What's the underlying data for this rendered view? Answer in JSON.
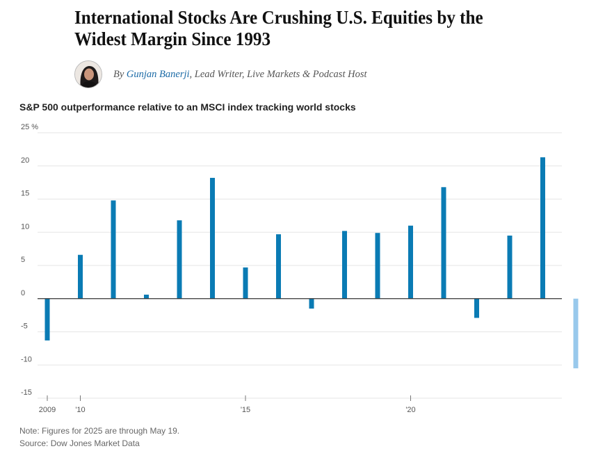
{
  "article": {
    "headline": "International Stocks Are Crushing U.S. Equities by the Widest Margin Since 1993",
    "byline_prefix": "By ",
    "author": "Gunjan Banerji",
    "author_role": ", Lead Writer, Live Markets & Podcast Host",
    "avatar_icon": "author-photo"
  },
  "chart_data": {
    "type": "bar",
    "title": "S&P 500 outperformance relative to an MSCI index tracking world stocks",
    "x": [
      2009,
      2010,
      2011,
      2012,
      2013,
      2014,
      2015,
      2016,
      2017,
      2018,
      2019,
      2020,
      2021,
      2022,
      2023,
      2024,
      2025
    ],
    "values": [
      -6.3,
      6.6,
      14.8,
      0.6,
      11.8,
      18.2,
      4.7,
      9.7,
      -1.5,
      10.2,
      9.9,
      11.0,
      16.8,
      -2.9,
      9.5,
      21.3,
      -10.5
    ],
    "highlight": [
      false,
      false,
      false,
      false,
      false,
      false,
      false,
      false,
      false,
      false,
      false,
      false,
      false,
      false,
      false,
      false,
      true
    ],
    "colors": {
      "bar": "#0a7bb4",
      "highlight": "#99c9ec",
      "grid": "#e6e6e6",
      "zero": "#333333"
    },
    "ylim": [
      -15,
      25
    ],
    "yticks": [
      -15,
      -10,
      -5,
      0,
      5,
      10,
      15,
      20,
      25
    ],
    "ytick_labels": [
      "-15",
      "-10",
      "-5",
      "0",
      "5",
      "10",
      "15",
      "20",
      "25 %"
    ],
    "xtick_years": [
      2009,
      2010,
      2015,
      2020
    ],
    "xtick_labels": [
      "2009",
      "'10",
      "'15",
      "'20"
    ],
    "grid": true
  },
  "footer": {
    "note": "Note: Figures for 2025 are through May 19.",
    "source": "Source: Dow Jones Market Data"
  }
}
